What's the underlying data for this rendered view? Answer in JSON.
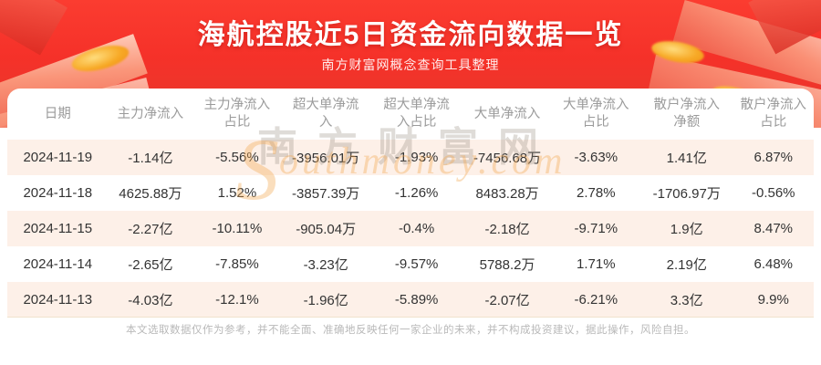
{
  "banner": {
    "title": "海航控股近5日资金流向数据一览",
    "subtitle": "南方财富网概念查询工具整理"
  },
  "table": {
    "headers": [
      "日期",
      "主力净流入",
      "主力净流入\n占比",
      "超大单净流\n入",
      "超大单净流\n入占比",
      "大单净流入",
      "大单净流入\n占比",
      "散户净流入\n净额",
      "散户净流入\n占比"
    ],
    "rows": [
      {
        "cells": [
          "2024-11-19",
          "-1.14亿",
          "-5.56%",
          "-3956.01万",
          "-1.93%",
          "-7456.68万",
          "-3.63%",
          "1.41亿",
          "6.87%"
        ]
      },
      {
        "cells": [
          "2024-11-18",
          "4625.88万",
          "1.52%",
          "-3857.39万",
          "-1.26%",
          "8483.28万",
          "2.78%",
          "-1706.97万",
          "-0.56%"
        ]
      },
      {
        "cells": [
          "2024-11-15",
          "-2.27亿",
          "-10.11%",
          "-905.04万",
          "-0.4%",
          "-2.18亿",
          "-9.71%",
          "1.9亿",
          "8.47%"
        ]
      },
      {
        "cells": [
          "2024-11-14",
          "-2.65亿",
          "-7.85%",
          "-3.23亿",
          "-9.57%",
          "5788.2万",
          "1.71%",
          "2.19亿",
          "6.48%"
        ]
      },
      {
        "cells": [
          "2024-11-13",
          "-4.03亿",
          "-12.1%",
          "-1.96亿",
          "-5.89%",
          "-2.07亿",
          "-6.21%",
          "3.3亿",
          "9.9%"
        ]
      }
    ]
  },
  "watermark": {
    "cn": "南方财富网",
    "en_initial": "S",
    "en_rest": "outhmoney.com"
  },
  "footer": {
    "disclaimer": "本文选取数据仅作为参考，并不能全面、准确地反映任何一家企业的未来，并不构成投资建议，据此操作，风险自担。"
  },
  "colors": {
    "banner_red_top": "#fb3c30",
    "banner_red_bottom": "#e63a2d",
    "gold_accent": "#f7a926",
    "row_pink": "#fdf0e8",
    "header_text": "#9b9b9b",
    "body_text": "#333333",
    "disclaimer_text": "#b9b9b9"
  },
  "chart_data": {
    "type": "table",
    "title": "海航控股近5日资金流向数据一览",
    "subtitle": "南方财富网概念查询工具整理",
    "columns": [
      "日期",
      "主力净流入",
      "主力净流入占比",
      "超大单净流入",
      "超大单净流入占比",
      "大单净流入",
      "大单净流入占比",
      "散户净流入净额",
      "散户净流入占比"
    ],
    "rows": [
      [
        "2024-11-19",
        "-1.14亿",
        "-5.56%",
        "-3956.01万",
        "-1.93%",
        "-7456.68万",
        "-3.63%",
        "1.41亿",
        "6.87%"
      ],
      [
        "2024-11-18",
        "4625.88万",
        "1.52%",
        "-3857.39万",
        "-1.26%",
        "8483.28万",
        "2.78%",
        "-1706.97万",
        "-0.56%"
      ],
      [
        "2024-11-15",
        "-2.27亿",
        "-10.11%",
        "-905.04万",
        "-0.4%",
        "-2.18亿",
        "-9.71%",
        "1.9亿",
        "8.47%"
      ],
      [
        "2024-11-14",
        "-2.65亿",
        "-7.85%",
        "-3.23亿",
        "-9.57%",
        "5788.2万",
        "1.71%",
        "2.19亿",
        "6.48%"
      ],
      [
        "2024-11-13",
        "-4.03亿",
        "-12.1%",
        "-1.96亿",
        "-5.89%",
        "-2.07亿",
        "-6.21%",
        "3.3亿",
        "9.9%"
      ]
    ]
  }
}
